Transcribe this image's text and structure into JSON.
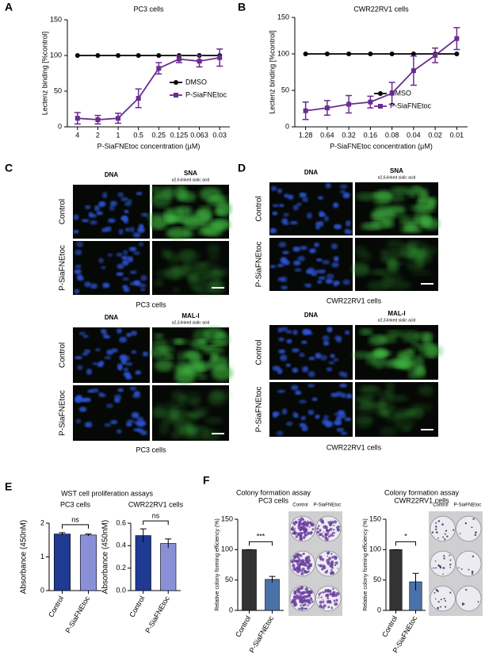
{
  "panel_labels": [
    "A",
    "B",
    "C",
    "D",
    "E",
    "F"
  ],
  "wst_title": "WST cell proliferation assays",
  "microscopy": {
    "dna": "DNA",
    "sna": "SNA",
    "sna_sub": "α2,6-linked sialic acid",
    "mal": "MAL-I",
    "mal_sub": "α2,3-linked sialic acid",
    "control": "Control",
    "treated": "P-SiaFNEtoc",
    "pc3": "PC3 cells",
    "cwr": "CWR22RV1 cells"
  },
  "chart_data": [
    {
      "type": "line",
      "title": "PC3 cells",
      "x_label": "P-SiaFNEtoc concentration (µM)",
      "y_label": "Lectenz binding [%control]",
      "categories": [
        "4",
        "2",
        "1",
        "0.5",
        "0.25",
        "0.125",
        "0.063",
        "0.03"
      ],
      "ylim": [
        0,
        150
      ],
      "yticks": [
        0,
        50,
        100,
        150
      ],
      "legend": "right",
      "series": [
        {
          "name": "DMSO",
          "color": "#000000",
          "marker": "circle",
          "values": [
            100,
            100,
            100,
            100,
            100,
            100,
            100,
            100
          ]
        },
        {
          "name": "P-SiaFNEtoc",
          "color": "#6a2c91",
          "marker": "square",
          "values": [
            12,
            10,
            12,
            40,
            82,
            95,
            92,
            97
          ],
          "errors": [
            8,
            6,
            7,
            13,
            8,
            5,
            8,
            12
          ]
        }
      ]
    },
    {
      "type": "line",
      "title": "CWR22RV1 cells",
      "x_label": "P-SiaFNEtoc concentration (µM)",
      "y_label": "Lectenz binding [%control]",
      "categories": [
        "1.28",
        "0.64",
        "0.32",
        "0.16",
        "0.08",
        "0.04",
        "0.02",
        "0.01"
      ],
      "ylim": [
        0,
        150
      ],
      "yticks": [
        0,
        50,
        100,
        150
      ],
      "legend": "right",
      "series": [
        {
          "name": "DMSO",
          "color": "#000000",
          "marker": "circle",
          "values": [
            100,
            100,
            100,
            100,
            100,
            100,
            100,
            100
          ]
        },
        {
          "name": "P-SiaFNEtoc",
          "color": "#6a2c91",
          "marker": "square",
          "values": [
            22,
            26,
            31,
            34,
            46,
            77,
            98,
            121
          ],
          "errors": [
            12,
            10,
            12,
            8,
            15,
            20,
            10,
            15
          ]
        }
      ]
    },
    {
      "type": "bar",
      "title": "PC3 cells",
      "y_label": "Absorbance (450nM)",
      "categories": [
        "Control",
        "P-SiaFNEtoc"
      ],
      "values": [
        1.68,
        1.65
      ],
      "errors": [
        0.04,
        0.03
      ],
      "colors": [
        "#1f3a93",
        "#8a90d8"
      ],
      "ylim": [
        0,
        2
      ],
      "yticks": [
        0,
        1,
        2
      ],
      "annotation": "ns"
    },
    {
      "type": "bar",
      "title": "CWR22RV1 cells",
      "y_label": "Absorbance (450nM)",
      "categories": [
        "Control",
        "P-SiaFNEtoc"
      ],
      "values": [
        0.49,
        0.42
      ],
      "errors": [
        0.06,
        0.04
      ],
      "colors": [
        "#1f3a93",
        "#8a90d8"
      ],
      "ylim": [
        0,
        0.6
      ],
      "yticks": [
        {
          "value": 0,
          "label": "0.0"
        },
        {
          "value": 0.2,
          "label": "0.2"
        },
        {
          "value": 0.4,
          "label": "0.4"
        },
        {
          "value": 0.6,
          "label": "0.6"
        }
      ],
      "annotation": "ns"
    },
    {
      "type": "bar",
      "title": "Colony formation assay",
      "subtitle": "PC3 cells",
      "y_label": "Relative colony forming efficiency (%)",
      "categories": [
        "Control",
        "P-SiaFNEtoc"
      ],
      "values": [
        100,
        51
      ],
      "errors": [
        0,
        5
      ],
      "colors": [
        "#333333",
        "#4a72a8"
      ],
      "ylim": [
        0,
        150
      ],
      "yticks": [
        0,
        50,
        100,
        150
      ],
      "annotation": "***",
      "image_labels": [
        "Control",
        "P-SiaFNEtoc"
      ]
    },
    {
      "type": "bar",
      "title": "Colony formation assay",
      "subtitle": "CWR22RV1 cells",
      "y_label": "Relative colony forming efficiency (%)",
      "categories": [
        "Control",
        "P-SiaFNEtoc"
      ],
      "values": [
        100,
        47
      ],
      "errors": [
        0,
        14
      ],
      "colors": [
        "#333333",
        "#4a72a8"
      ],
      "ylim": [
        0,
        150
      ],
      "yticks": [
        0,
        50,
        100,
        150
      ],
      "annotation": "*",
      "image_labels": [
        "Control",
        "P-SiaFNEtoc"
      ]
    }
  ]
}
